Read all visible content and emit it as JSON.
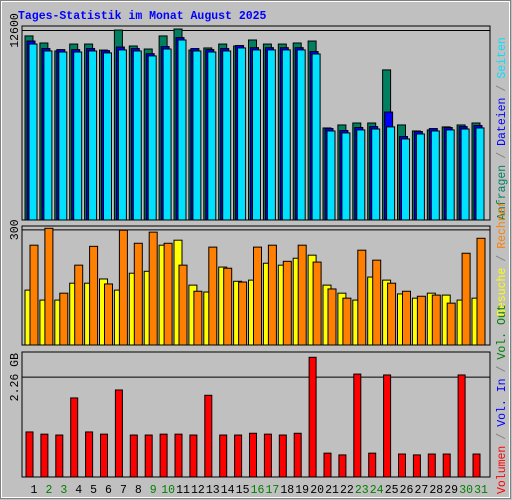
{
  "title": "Tages-Statistik im Monat August 2025",
  "legend_separator": "/",
  "chart_data": [
    {
      "type": "bar",
      "series": [
        {
          "name": "Anfragen",
          "color": "#008060",
          "values": [
            12240,
            11770,
            11240,
            11700,
            11700,
            11300,
            12630,
            11570,
            11370,
            12240,
            12700,
            11300,
            11440,
            11700,
            11570,
            11970,
            11700,
            11700,
            11770,
            11900,
            6120,
            6320,
            6450,
            6450,
            9980,
            6320,
            5920,
            5990,
            6190,
            6320,
            6450
          ]
        },
        {
          "name": "Dateien",
          "color": "#0000ff",
          "values": [
            11900,
            11400,
            11330,
            11330,
            11400,
            11260,
            11500,
            11400,
            11060,
            11530,
            12130,
            11400,
            11330,
            11400,
            11600,
            11460,
            11460,
            11460,
            11460,
            11200,
            6080,
            5950,
            6150,
            6210,
            7180,
            5550,
            5880,
            6080,
            6150,
            6210,
            6280
          ]
        },
        {
          "name": "Seiten",
          "color": "#00e0ff",
          "values": [
            11700,
            11240,
            11170,
            11170,
            11240,
            11110,
            11310,
            11240,
            10910,
            11370,
            11970,
            11240,
            11170,
            11240,
            11440,
            11310,
            11310,
            11310,
            11310,
            11040,
            5920,
            5790,
            5990,
            6050,
            6190,
            5390,
            5720,
            5920,
            5990,
            6050,
            6120
          ]
        }
      ],
      "ylim": [
        0,
        12900
      ],
      "yticks": [
        12600
      ]
    },
    {
      "type": "bar",
      "series": [
        {
          "name": "Besuche",
          "color": "#ffff00",
          "values": [
            143,
            117,
            117,
            161,
            161,
            172,
            143,
            187,
            192,
            260,
            273,
            156,
            138,
            203,
            166,
            169,
            213,
            208,
            226,
            234,
            156,
            135,
            117,
            177,
            169,
            133,
            122,
            135,
            130,
            117,
            122
          ]
        },
        {
          "name": "Rechner",
          "color": "#ff8000",
          "values": [
            260,
            304,
            135,
            208,
            257,
            159,
            299,
            265,
            294,
            265,
            208,
            140,
            255,
            200,
            164,
            255,
            260,
            218,
            260,
            216,
            146,
            122,
            247,
            221,
            161,
            140,
            127,
            130,
            109,
            239,
            278
          ]
        }
      ],
      "ylim": [
        0,
        310
      ],
      "yticks": [
        300
      ]
    },
    {
      "type": "bar",
      "categories": [
        "1",
        "2",
        "3",
        "4",
        "5",
        "6",
        "7",
        "8",
        "9",
        "10",
        "11",
        "12",
        "13",
        "14",
        "15",
        "16",
        "17",
        "18",
        "19",
        "20",
        "21",
        "22",
        "23",
        "24",
        "25",
        "26",
        "27",
        "28",
        "29",
        "30",
        "31"
      ],
      "category_colors": [
        "#000000",
        "#008000",
        "#008000",
        "#000000",
        "#000000",
        "#000000",
        "#000000",
        "#000000",
        "#008000",
        "#008000",
        "#000000",
        "#000000",
        "#000000",
        "#000000",
        "#000000",
        "#008000",
        "#008000",
        "#000000",
        "#000000",
        "#000000",
        "#000000",
        "#000000",
        "#008000",
        "#008000",
        "#000000",
        "#000000",
        "#000000",
        "#000000",
        "#000000",
        "#008000",
        "#008000"
      ],
      "series": [
        {
          "name": "Volumen",
          "color": "#ff0000",
          "values": [
            1.02,
            0.97,
            0.95,
            1.79,
            1.02,
            0.97,
            1.97,
            0.95,
            0.95,
            0.97,
            0.97,
            0.95,
            1.85,
            0.95,
            0.95,
            0.99,
            0.97,
            0.95,
            0.99,
            2.71,
            0.54,
            0.5,
            2.33,
            0.54,
            2.31,
            0.52,
            0.5,
            0.52,
            0.52,
            2.31,
            0.52
          ]
        }
      ],
      "legend_extra": [
        {
          "name": "Vol. In",
          "color": "#0000ff"
        },
        {
          "name": "Vol. Out",
          "color": "#008000"
        }
      ],
      "ylim": [
        0,
        2.83
      ],
      "yticks": [
        {
          "value": 2.26,
          "label": "2.26 GB"
        }
      ]
    }
  ]
}
